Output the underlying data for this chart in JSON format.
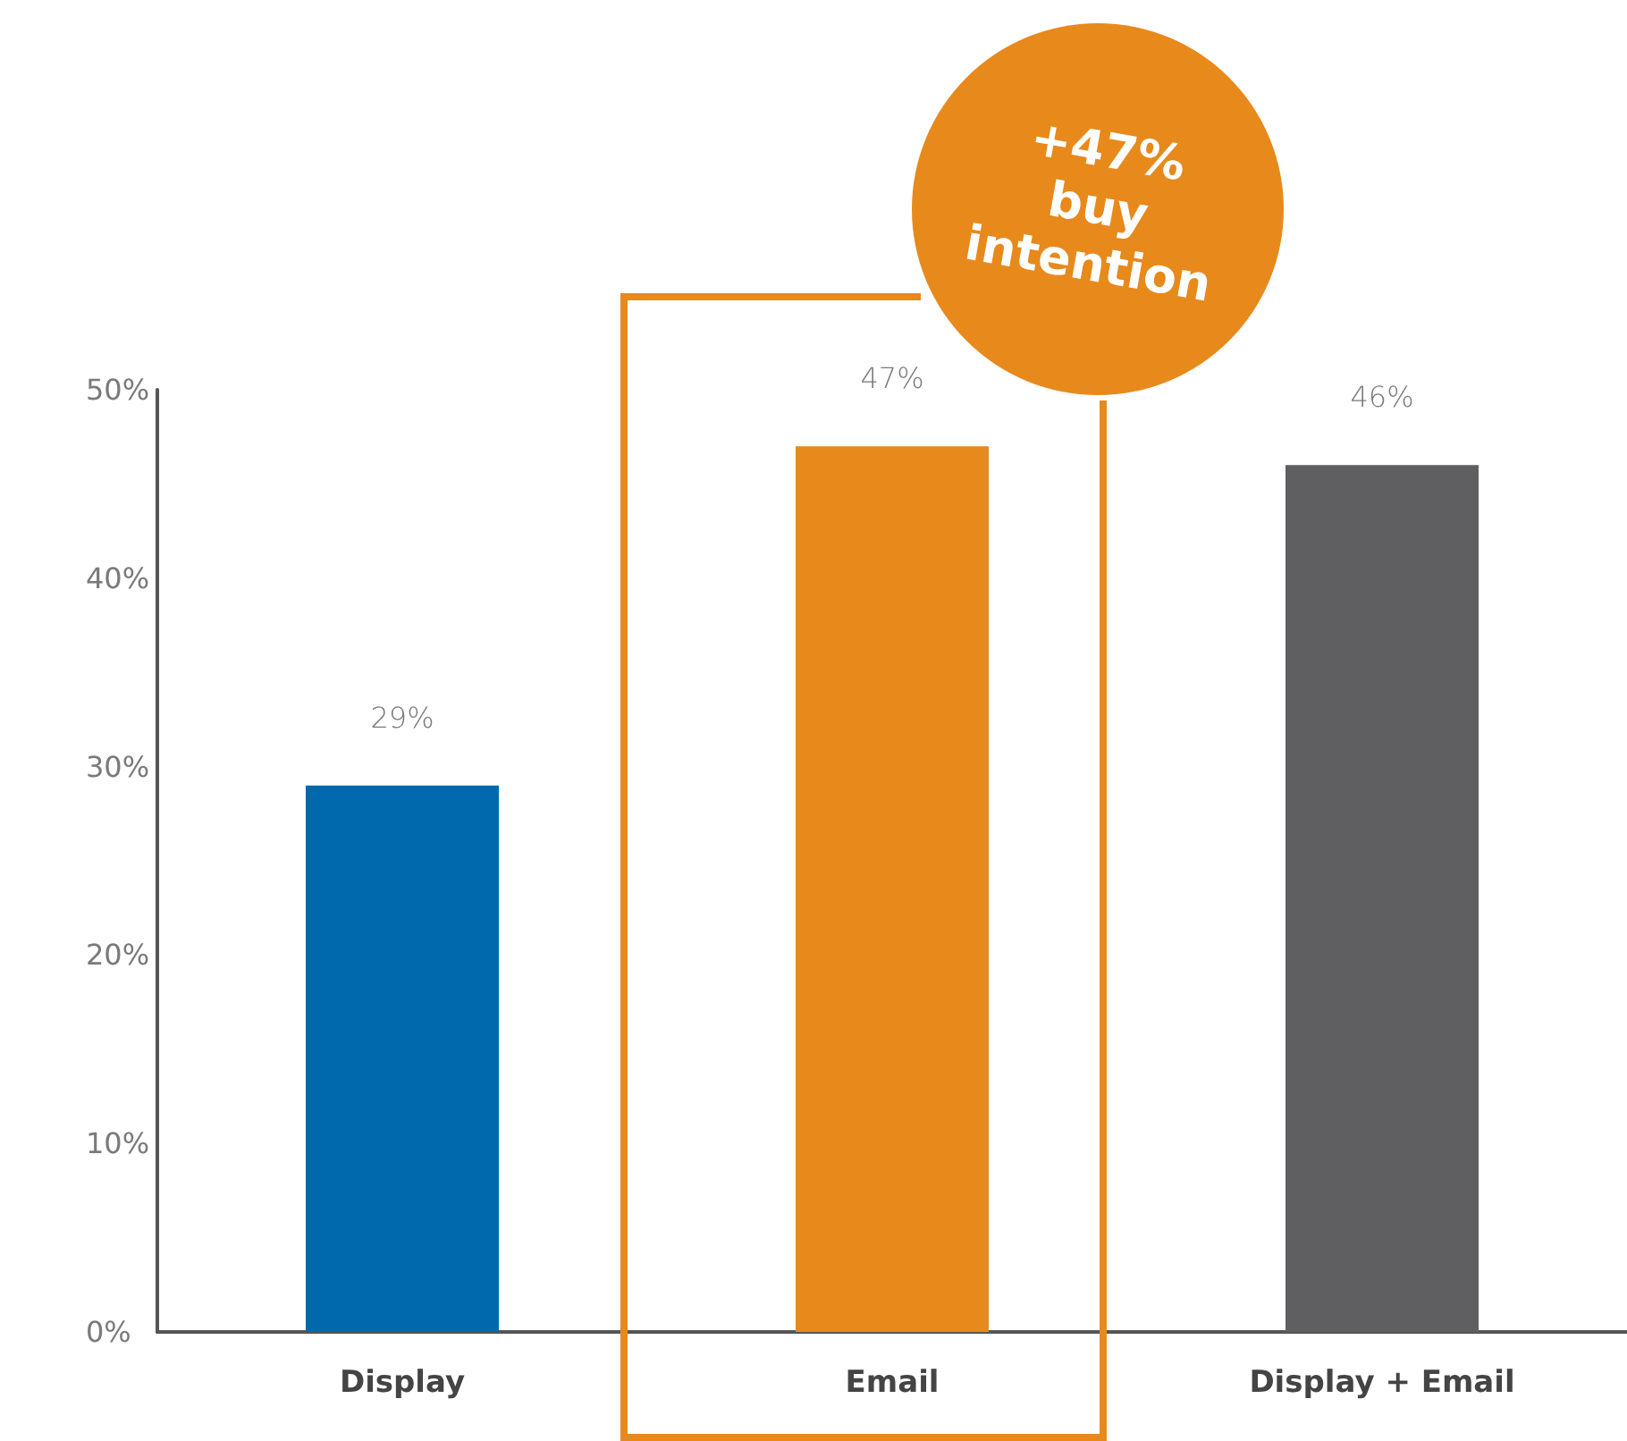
{
  "chart_data": {
    "type": "bar",
    "categories": [
      "Display",
      "Email",
      "Display + Email"
    ],
    "values": [
      29,
      47,
      46
    ],
    "colors": [
      "#0068ad",
      "#e8891c",
      "#5f5e60"
    ],
    "value_labels": [
      "29%",
      "47%",
      "46%"
    ],
    "ylim": [
      0,
      50
    ],
    "yticks": [
      {
        "value": 0,
        "label": "0%"
      },
      {
        "value": 10,
        "label": "10%"
      },
      {
        "value": 20,
        "label": "20%"
      },
      {
        "value": 30,
        "label": "30%"
      },
      {
        "value": 40,
        "label": "40%"
      },
      {
        "value": 50,
        "label": "50%"
      }
    ],
    "grid": false,
    "annotations": [
      "+47% buy intention"
    ]
  }
}
